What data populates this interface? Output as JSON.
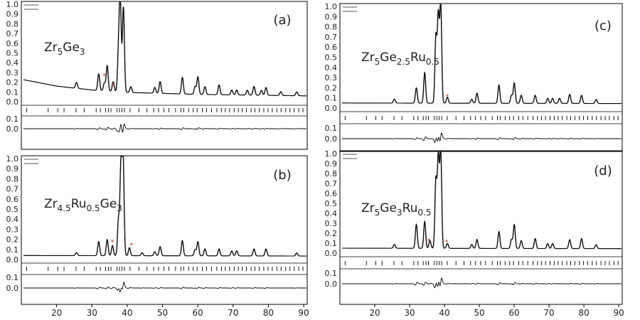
{
  "chart_data": [
    {
      "type": "line",
      "panel_label": "(a)",
      "compound_label": [
        "Zr",
        "5",
        "Ge",
        "3",
        "",
        ""
      ],
      "xlim": [
        10,
        91
      ],
      "x_ticks": [
        20,
        30,
        40,
        50,
        60,
        70,
        80,
        90
      ],
      "y_ticks": [
        "1.0",
        "0.9",
        "0.8",
        "0.7",
        "0.6",
        "0.5",
        "0.4",
        "0.3",
        "0.2",
        "0.1",
        "0.0"
      ],
      "diff_ticks": [
        "0.1",
        "0.0"
      ],
      "impurity_markers": [
        "*",
        "*"
      ],
      "series": [
        {
          "role": "observed",
          "background": [
            [
              10,
              0.23
            ],
            [
              20,
              0.16
            ],
            [
              30,
              0.12
            ],
            [
              40,
              0.095
            ],
            [
              50,
              0.085
            ],
            [
              60,
              0.075
            ],
            [
              70,
              0.07
            ],
            [
              80,
              0.065
            ],
            [
              90,
              0.06
            ]
          ],
          "peaks": [
            [
              25.6,
              0.06
            ],
            [
              31.9,
              0.17
            ],
            [
              33.5,
              0.08
            ],
            [
              34.3,
              0.26
            ],
            [
              36.0,
              0.1
            ],
            [
              37.5,
              0.38
            ],
            [
              38.0,
              0.95
            ],
            [
              38.9,
              0.87
            ],
            [
              41.0,
              0.06
            ],
            [
              47.8,
              0.06
            ],
            [
              49.3,
              0.12
            ],
            [
              55.6,
              0.17
            ],
            [
              59.2,
              0.08
            ],
            [
              60.0,
              0.18
            ],
            [
              62.0,
              0.08
            ],
            [
              66.0,
              0.1
            ],
            [
              69.6,
              0.05
            ],
            [
              71.0,
              0.05
            ],
            [
              74.0,
              0.05
            ],
            [
              75.9,
              0.09
            ],
            [
              78.0,
              0.05
            ],
            [
              79.3,
              0.08
            ],
            [
              83.5,
              0.04
            ],
            [
              88.0,
              0.04
            ]
          ]
        }
      ],
      "bragg_positions": [
        11.5,
        17.6,
        20.3,
        22.1,
        25.5,
        27.8,
        31.2,
        32.4,
        33.9,
        34.7,
        35.4,
        37.1,
        37.8,
        38.5,
        39.2,
        40.8,
        43.3,
        45.6,
        47.5,
        48.9,
        50.4,
        51.8,
        53.7,
        55.2,
        56.0,
        57.4,
        58.7,
        59.8,
        61.3,
        62.5,
        63.9,
        65.4,
        66.7,
        67.8,
        69.0,
        70.3,
        71.5,
        72.6,
        73.8,
        75.1,
        76.2,
        77.4,
        78.7,
        79.9,
        81.1,
        82.4,
        83.6,
        84.9,
        86.1,
        87.3,
        88.6,
        89.8
      ]
    },
    {
      "type": "line",
      "panel_label": "(b)",
      "compound_label": [
        "Zr",
        "4.5",
        "Ru",
        "0.5",
        "Ge",
        "3"
      ],
      "xlim": [
        10,
        91
      ],
      "x_ticks": [
        20,
        30,
        40,
        50,
        60,
        70,
        80,
        90
      ],
      "y_ticks": [
        "1.0",
        "0.9",
        "0.8",
        "0.7",
        "0.6",
        "0.5",
        "0.4",
        "0.3",
        "0.2",
        "0.1",
        "0.0"
      ],
      "diff_ticks": [
        "0.1",
        "0.0"
      ],
      "impurity_markers": [
        "*",
        "*"
      ],
      "series": [
        {
          "role": "observed",
          "background": [
            [
              10,
              0.04
            ],
            [
              90,
              0.035
            ]
          ],
          "peaks": [
            [
              25.6,
              0.03
            ],
            [
              31.9,
              0.14
            ],
            [
              34.3,
              0.16
            ],
            [
              35.8,
              0.1
            ],
            [
              37.5,
              0.35
            ],
            [
              38.2,
              0.88
            ],
            [
              38.8,
              0.97
            ],
            [
              40.6,
              0.08
            ],
            [
              44.2,
              0.03
            ],
            [
              47.8,
              0.04
            ],
            [
              49.3,
              0.09
            ],
            [
              55.6,
              0.15
            ],
            [
              59.2,
              0.06
            ],
            [
              60.0,
              0.14
            ],
            [
              62.0,
              0.07
            ],
            [
              66.0,
              0.07
            ],
            [
              69.6,
              0.05
            ],
            [
              71.0,
              0.05
            ],
            [
              75.9,
              0.07
            ],
            [
              79.3,
              0.07
            ],
            [
              88.0,
              0.03
            ]
          ]
        }
      ],
      "bragg_positions": [
        11.5,
        17.6,
        20.3,
        22.1,
        25.5,
        27.8,
        31.2,
        32.4,
        33.9,
        34.7,
        35.4,
        37.1,
        37.8,
        38.5,
        39.2,
        40.8,
        43.3,
        45.6,
        47.5,
        48.9,
        50.4,
        51.8,
        53.7,
        55.2,
        56.0,
        57.4,
        58.7,
        59.8,
        61.3,
        62.5,
        63.9,
        65.4,
        66.7,
        67.8,
        69.0,
        70.3,
        71.5,
        72.6,
        73.8,
        75.1,
        76.2,
        77.4,
        78.7,
        79.9,
        81.1,
        82.4,
        83.6,
        84.9,
        86.1,
        87.3,
        88.6,
        89.8
      ]
    },
    {
      "type": "line",
      "panel_label": "(c)",
      "compound_label": [
        "Zr",
        "5",
        "Ge",
        "2.5",
        "Ru",
        "0.5"
      ],
      "xlim": [
        10,
        91
      ],
      "x_ticks": [
        20,
        30,
        40,
        50,
        60,
        70,
        80,
        90
      ],
      "y_ticks": [
        "1.0",
        "0.9",
        "0.8",
        "0.7",
        "0.6",
        "0.5",
        "0.4",
        "0.3",
        "0.2",
        "0.1",
        "0.0"
      ],
      "diff_ticks": [
        "0.1",
        "0.0"
      ],
      "impurity_markers": [
        "*"
      ],
      "series": [
        {
          "role": "observed",
          "background": [
            [
              10,
              0.05
            ],
            [
              90,
              0.045
            ]
          ],
          "peaks": [
            [
              25.6,
              0.04
            ],
            [
              31.9,
              0.15
            ],
            [
              34.3,
              0.3
            ],
            [
              37.5,
              0.65
            ],
            [
              38.2,
              0.85
            ],
            [
              38.9,
              0.97
            ],
            [
              40.8,
              0.06
            ],
            [
              47.8,
              0.04
            ],
            [
              49.3,
              0.1
            ],
            [
              55.6,
              0.18
            ],
            [
              59.2,
              0.08
            ],
            [
              60.0,
              0.2
            ],
            [
              62.0,
              0.08
            ],
            [
              66.0,
              0.08
            ],
            [
              69.6,
              0.05
            ],
            [
              71.0,
              0.05
            ],
            [
              73.0,
              0.05
            ],
            [
              75.9,
              0.09
            ],
            [
              79.3,
              0.08
            ],
            [
              83.5,
              0.04
            ]
          ]
        }
      ],
      "bragg_positions": [
        11.5,
        17.6,
        20.3,
        22.1,
        25.5,
        27.8,
        31.2,
        32.4,
        33.9,
        34.7,
        35.4,
        37.1,
        37.8,
        38.5,
        39.2,
        40.8,
        43.3,
        45.6,
        47.5,
        48.9,
        50.4,
        51.8,
        53.7,
        55.2,
        56.0,
        57.4,
        58.7,
        59.8,
        61.3,
        62.5,
        63.9,
        65.4,
        66.7,
        67.8,
        69.0,
        70.3,
        71.5,
        72.6,
        73.8,
        75.1,
        76.2,
        77.4,
        78.7,
        79.9,
        81.1,
        82.4,
        83.6,
        84.9,
        86.1,
        87.3,
        88.6,
        89.8
      ]
    },
    {
      "type": "line",
      "panel_label": "(d)",
      "compound_label": [
        "Zr",
        "5",
        "Ge",
        "3",
        "Ru",
        "0.5"
      ],
      "xlim": [
        10,
        91
      ],
      "x_ticks": [
        20,
        30,
        40,
        50,
        60,
        70,
        80,
        90
      ],
      "y_ticks": [
        "1.0",
        "0.9",
        "0.8",
        "0.7",
        "0.6",
        "0.5",
        "0.4",
        "0.3",
        "0.2",
        "0.1",
        "0.0"
      ],
      "diff_ticks": [
        "0.1",
        "0.0"
      ],
      "impurity_markers": [
        "*",
        "*"
      ],
      "series": [
        {
          "role": "observed",
          "background": [
            [
              10,
              0.05
            ],
            [
              90,
              0.045
            ]
          ],
          "peaks": [
            [
              25.6,
              0.04
            ],
            [
              31.9,
              0.24
            ],
            [
              34.3,
              0.27
            ],
            [
              35.8,
              0.08
            ],
            [
              37.5,
              0.68
            ],
            [
              38.2,
              0.9
            ],
            [
              38.9,
              0.97
            ],
            [
              40.8,
              0.05
            ],
            [
              47.8,
              0.04
            ],
            [
              49.3,
              0.09
            ],
            [
              55.6,
              0.17
            ],
            [
              59.2,
              0.09
            ],
            [
              60.0,
              0.24
            ],
            [
              62.0,
              0.08
            ],
            [
              66.0,
              0.1
            ],
            [
              69.6,
              0.05
            ],
            [
              71.0,
              0.05
            ],
            [
              75.9,
              0.09
            ],
            [
              79.3,
              0.1
            ],
            [
              83.5,
              0.04
            ]
          ]
        }
      ],
      "bragg_positions": [
        11.5,
        17.6,
        20.3,
        22.1,
        25.5,
        27.8,
        31.2,
        32.4,
        33.9,
        34.7,
        35.4,
        37.1,
        37.8,
        38.5,
        39.2,
        40.8,
        43.3,
        45.6,
        47.5,
        48.9,
        50.4,
        51.8,
        53.7,
        55.2,
        56.0,
        57.4,
        58.7,
        59.8,
        61.3,
        62.5,
        63.9,
        65.4,
        66.7,
        67.8,
        69.0,
        70.3,
        71.5,
        72.6,
        73.8,
        75.1,
        76.2,
        77.4,
        78.7,
        79.9,
        81.1,
        82.4,
        83.6,
        84.9,
        86.1,
        87.3,
        88.6,
        89.8
      ]
    }
  ]
}
